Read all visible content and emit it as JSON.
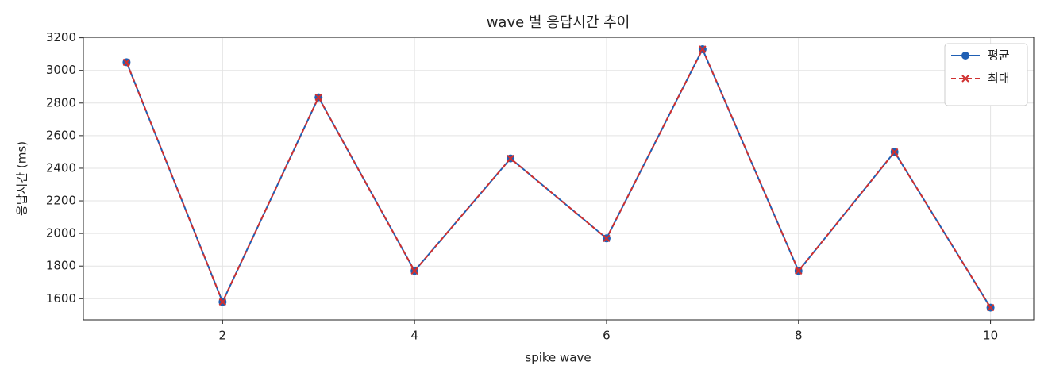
{
  "chart_data": {
    "type": "line",
    "title": "wave 별 응답시간 추이",
    "x_label": "spike wave",
    "y_label": "응답시간 (ms)",
    "x": [
      1,
      2,
      3,
      4,
      5,
      6,
      7,
      8,
      9,
      10
    ],
    "series": [
      {
        "name": "평균",
        "color": "#1f5fb4",
        "marker": "circle",
        "dash": false,
        "values": [
          3050,
          1580,
          2835,
          1770,
          2460,
          1970,
          3130,
          1770,
          2500,
          1545
        ]
      },
      {
        "name": "최대",
        "color": "#d03030",
        "marker": "x",
        "dash": true,
        "values": [
          3050,
          1580,
          2835,
          1770,
          2460,
          1970,
          3130,
          1770,
          2500,
          1545
        ]
      }
    ],
    "xlim": [
      0.55,
      10.45
    ],
    "ylim": [
      1470,
      3203
    ],
    "xticks": [
      2,
      4,
      6,
      8,
      10
    ],
    "yticks": [
      1600,
      1800,
      2000,
      2200,
      2400,
      2600,
      2800,
      3000,
      3200
    ],
    "grid": true,
    "legend": "upper right"
  }
}
